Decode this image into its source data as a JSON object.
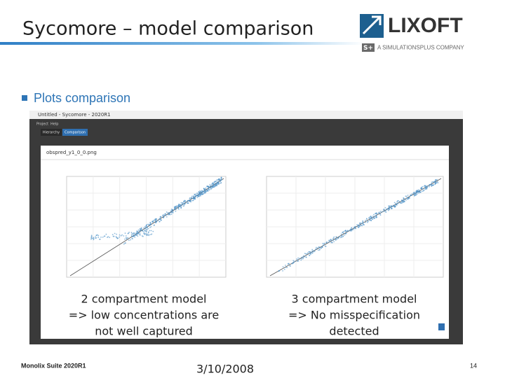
{
  "header": {
    "title": "Sycomore – model comparison",
    "logo": {
      "name": "LIXOFT",
      "badge": "S+",
      "tagline": "A SIMULATIONSPLUS COMPANY"
    }
  },
  "bullet": "Plots comparison",
  "screenshot": {
    "window_title": "Untitled - Sycomore - 2020R1",
    "menu": [
      "Project",
      "Help"
    ],
    "tabs": [
      "Hierarchy",
      "Comparison"
    ],
    "dialog_title": "obspred_y1_0_0.png",
    "plots": [
      {
        "caption": [
          "2 compartment model",
          "=> low concentrations are",
          "not well captured"
        ]
      },
      {
        "caption": [
          "3 compartment model",
          "=> No misspecification",
          "detected"
        ]
      }
    ]
  },
  "footer": {
    "product": "Monolix Suite 2020R1",
    "date": "3/10/2008",
    "page": "14"
  }
}
